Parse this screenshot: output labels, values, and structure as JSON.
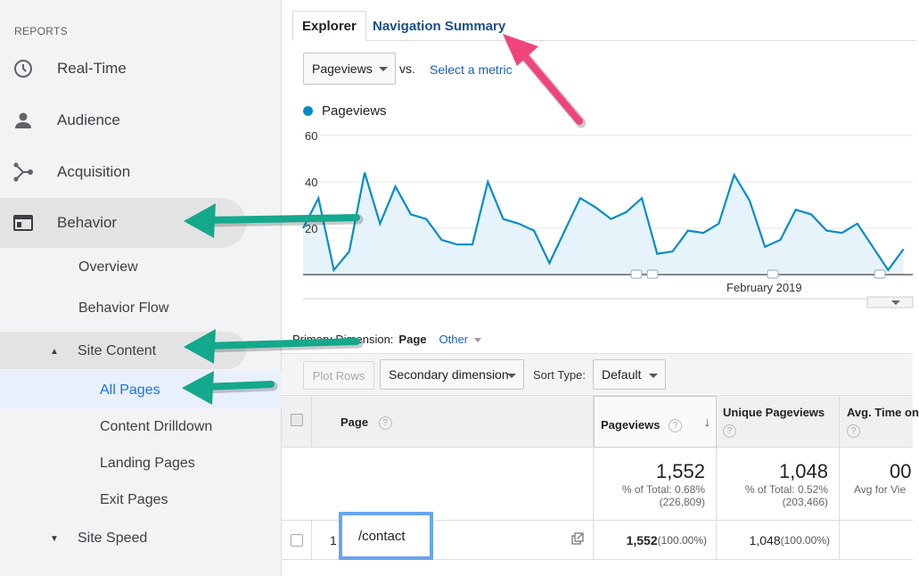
{
  "sidebar": {
    "heading": "REPORTS",
    "items": [
      {
        "label": "Real-Time",
        "icon": "clock-icon"
      },
      {
        "label": "Audience",
        "icon": "person-icon"
      },
      {
        "label": "Acquisition",
        "icon": "acquisition-icon"
      },
      {
        "label": "Behavior",
        "icon": "behavior-icon"
      }
    ],
    "behavior_sub": {
      "overview": "Overview",
      "behavior_flow": "Behavior Flow",
      "site_content": "Site Content",
      "all_pages": "All Pages",
      "content_drilldown": "Content Drilldown",
      "landing_pages": "Landing Pages",
      "exit_pages": "Exit Pages",
      "site_speed": "Site Speed"
    }
  },
  "tabs": {
    "explorer": "Explorer",
    "navigation_summary": "Navigation Summary"
  },
  "metric": {
    "selected": "Pageviews",
    "vs": "vs.",
    "select_metric": "Select a metric"
  },
  "chart_data": {
    "type": "area",
    "series": [
      {
        "name": "Pageviews",
        "values": [
          20,
          33,
          2,
          10,
          44,
          22,
          38,
          26,
          24,
          15,
          13,
          13,
          40,
          24,
          22,
          19,
          5,
          19,
          33,
          29,
          24,
          27,
          33,
          9,
          10,
          19,
          18,
          22,
          43,
          32,
          12,
          15,
          28,
          26,
          19,
          18,
          22,
          12,
          2,
          11
        ]
      }
    ],
    "x_tick_label": "February 2019",
    "y_ticks": [
      "60",
      "40",
      "20"
    ],
    "ylim": [
      0,
      60
    ],
    "color": "#058dc7"
  },
  "primary_dimension": {
    "label": "Primary Dimension:",
    "page": "Page",
    "other": "Other"
  },
  "toolbar": {
    "plot_rows": "Plot Rows",
    "secondary_dimension": "Secondary dimension",
    "sort_type_label": "Sort Type:",
    "sort_type_value": "Default"
  },
  "table": {
    "headers": {
      "page": "Page",
      "pageviews": "Pageviews",
      "unique_pageviews": "Unique Pageviews",
      "avg_time": "Avg. Time on"
    },
    "totals": {
      "pageviews": "1,552",
      "pageviews_pct": "% of Total: 0.68%",
      "pageviews_of": "(226,809)",
      "unique": "1,048",
      "unique_pct": "% of Total: 0.52%",
      "unique_of": "(203,466)",
      "avg": "00",
      "avg_sub": "Avg for Vie"
    },
    "rows": [
      {
        "index": "1",
        "page": "/contact",
        "pageviews": "1,552",
        "pageviews_pct": "(100.00%)",
        "unique": "1,048",
        "unique_pct": "(100.00%)"
      }
    ]
  },
  "colors": {
    "arrow_green": "#14a88c",
    "arrow_pink": "#f0457a",
    "link_blue": "#1a5fb4",
    "highlight_blue": "#e8f0fe"
  }
}
